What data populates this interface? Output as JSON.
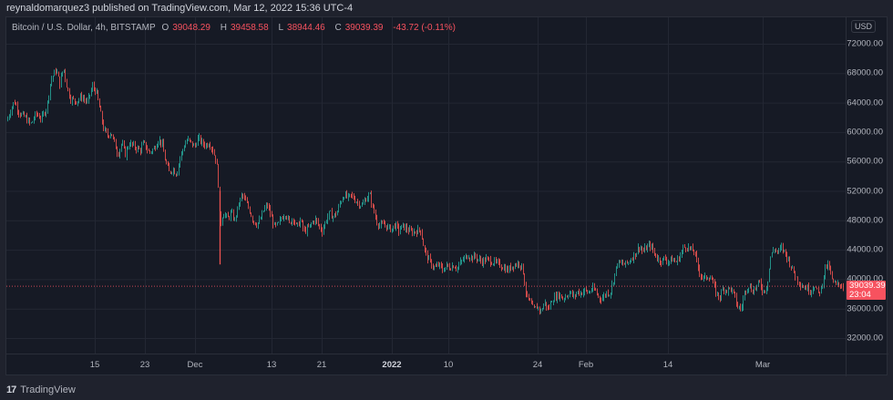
{
  "header": {
    "attribution": "reynaldomarquez3 published on TradingView.com, Mar 12, 2022 15:36 UTC-4"
  },
  "legend": {
    "symbol": "Bitcoin / U.S. Dollar, 4h, BITSTAMP",
    "o_label": "O",
    "o_value": "39048.29",
    "h_label": "H",
    "h_value": "39458.58",
    "l_label": "L",
    "l_value": "38944.46",
    "c_label": "C",
    "c_value": "39039.39",
    "change": "-43.72 (-0.11%)"
  },
  "price_axis": {
    "currency": "USD",
    "last_price": "39039.39",
    "countdown": "23:04"
  },
  "footer": {
    "brand": "TradingView",
    "logo": "17"
  },
  "colors": {
    "up": "#26a69a",
    "down": "#ef5350",
    "background": "#161a25",
    "grid": "#232733",
    "last_price": "#f7525f"
  },
  "chart_data": {
    "type": "candlestick",
    "title": "Bitcoin / U.S. Dollar, 4h, BITSTAMP",
    "xlabel": "",
    "ylabel": "USD",
    "ylim": [
      28000,
      74500
    ],
    "grid": true,
    "legend_position": "top-left",
    "y_ticks": [
      72000,
      68000,
      64000,
      60000,
      56000,
      52000,
      48000,
      44000,
      40000,
      36000,
      32000
    ],
    "x_ticks": [
      {
        "label": "15",
        "x": 97
      },
      {
        "label": "23",
        "x": 152
      },
      {
        "label": "Dec",
        "x": 207
      },
      {
        "label": "13",
        "x": 291
      },
      {
        "label": "21",
        "x": 346
      },
      {
        "label": "2022",
        "x": 423,
        "bold": true
      },
      {
        "label": "10",
        "x": 485
      },
      {
        "label": "24",
        "x": 583
      },
      {
        "label": "Feb",
        "x": 636
      },
      {
        "label": "14",
        "x": 726
      },
      {
        "label": "Mar",
        "x": 830
      }
    ],
    "last_price": 39039.39,
    "close_path": [
      [
        0,
        61500
      ],
      [
        4,
        63000
      ],
      [
        8,
        64200
      ],
      [
        14,
        62500
      ],
      [
        20,
        62000
      ],
      [
        26,
        61000
      ],
      [
        32,
        62500
      ],
      [
        38,
        61800
      ],
      [
        44,
        63500
      ],
      [
        48,
        67000
      ],
      [
        54,
        68500
      ],
      [
        58,
        66500
      ],
      [
        62,
        68800
      ],
      [
        66,
        66000
      ],
      [
        70,
        64500
      ],
      [
        76,
        64200
      ],
      [
        82,
        64800
      ],
      [
        88,
        64000
      ],
      [
        94,
        66200
      ],
      [
        98,
        65500
      ],
      [
        102,
        63000
      ],
      [
        106,
        60500
      ],
      [
        110,
        59500
      ],
      [
        114,
        60000
      ],
      [
        118,
        58500
      ],
      [
        122,
        57000
      ],
      [
        126,
        58500
      ],
      [
        130,
        57000
      ],
      [
        134,
        58500
      ],
      [
        140,
        58000
      ],
      [
        146,
        57500
      ],
      [
        150,
        58500
      ],
      [
        156,
        57200
      ],
      [
        162,
        57800
      ],
      [
        166,
        59000
      ],
      [
        170,
        58500
      ],
      [
        174,
        56000
      ],
      [
        178,
        54500
      ],
      [
        182,
        55000
      ],
      [
        186,
        54300
      ],
      [
        190,
        56500
      ],
      [
        194,
        58000
      ],
      [
        198,
        59000
      ],
      [
        202,
        58500
      ],
      [
        206,
        58000
      ],
      [
        210,
        59200
      ],
      [
        214,
        58500
      ],
      [
        218,
        58200
      ],
      [
        222,
        58600
      ],
      [
        226,
        57500
      ],
      [
        230,
        56000
      ],
      [
        232,
        53000
      ],
      [
        234,
        47000
      ],
      [
        236,
        48500
      ],
      [
        238,
        49000
      ],
      [
        242,
        48200
      ],
      [
        246,
        49000
      ],
      [
        250,
        48000
      ],
      [
        254,
        50000
      ],
      [
        258,
        51500
      ],
      [
        262,
        50500
      ],
      [
        266,
        49500
      ],
      [
        270,
        48000
      ],
      [
        274,
        47500
      ],
      [
        278,
        48000
      ],
      [
        282,
        49500
      ],
      [
        286,
        50000
      ],
      [
        290,
        48500
      ],
      [
        294,
        47000
      ],
      [
        298,
        47500
      ],
      [
        302,
        48500
      ],
      [
        306,
        49000
      ],
      [
        310,
        47500
      ],
      [
        314,
        48500
      ],
      [
        318,
        47000
      ],
      [
        322,
        48000
      ],
      [
        326,
        46500
      ],
      [
        330,
        46800
      ],
      [
        334,
        47500
      ],
      [
        338,
        48200
      ],
      [
        342,
        47300
      ],
      [
        346,
        46600
      ],
      [
        350,
        48000
      ],
      [
        354,
        49000
      ],
      [
        358,
        48500
      ],
      [
        362,
        49000
      ],
      [
        366,
        50500
      ],
      [
        370,
        51500
      ],
      [
        374,
        51000
      ],
      [
        378,
        51400
      ],
      [
        382,
        50800
      ],
      [
        386,
        50300
      ],
      [
        390,
        50000
      ],
      [
        394,
        51000
      ],
      [
        398,
        51500
      ],
      [
        402,
        49500
      ],
      [
        406,
        47800
      ],
      [
        410,
        47200
      ],
      [
        414,
        47500
      ],
      [
        418,
        47000
      ],
      [
        422,
        46800
      ],
      [
        426,
        47400
      ],
      [
        430,
        46600
      ],
      [
        434,
        47200
      ],
      [
        438,
        46900
      ],
      [
        442,
        46500
      ],
      [
        446,
        46400
      ],
      [
        450,
        46600
      ],
      [
        454,
        46700
      ],
      [
        458,
        44000
      ],
      [
        462,
        42800
      ],
      [
        466,
        42000
      ],
      [
        470,
        41500
      ],
      [
        474,
        42000
      ],
      [
        478,
        41200
      ],
      [
        482,
        41800
      ],
      [
        486,
        41600
      ],
      [
        490,
        41900
      ],
      [
        494,
        41500
      ],
      [
        498,
        42300
      ],
      [
        502,
        42800
      ],
      [
        506,
        43300
      ],
      [
        510,
        42900
      ],
      [
        514,
        43100
      ],
      [
        518,
        42600
      ],
      [
        522,
        42400
      ],
      [
        526,
        42700
      ],
      [
        530,
        42500
      ],
      [
        534,
        42300
      ],
      [
        538,
        42100
      ],
      [
        542,
        41900
      ],
      [
        546,
        41500
      ],
      [
        550,
        41200
      ],
      [
        554,
        41800
      ],
      [
        558,
        42000
      ],
      [
        562,
        42200
      ],
      [
        566,
        41500
      ],
      [
        568,
        39500
      ],
      [
        570,
        37800
      ],
      [
        574,
        36800
      ],
      [
        578,
        35800
      ],
      [
        582,
        36300
      ],
      [
        586,
        35600
      ],
      [
        590,
        36900
      ],
      [
        594,
        35800
      ],
      [
        598,
        37200
      ],
      [
        602,
        37600
      ],
      [
        606,
        37900
      ],
      [
        610,
        37400
      ],
      [
        614,
        37800
      ],
      [
        618,
        38200
      ],
      [
        622,
        37600
      ],
      [
        626,
        38300
      ],
      [
        630,
        38100
      ],
      [
        634,
        38500
      ],
      [
        638,
        38100
      ],
      [
        642,
        38700
      ],
      [
        646,
        38400
      ],
      [
        650,
        37400
      ],
      [
        654,
        37500
      ],
      [
        658,
        38200
      ],
      [
        662,
        38100
      ],
      [
        666,
        40200
      ],
      [
        670,
        42200
      ],
      [
        674,
        42100
      ],
      [
        678,
        42000
      ],
      [
        682,
        42300
      ],
      [
        686,
        43000
      ],
      [
        690,
        43500
      ],
      [
        694,
        44500
      ],
      [
        698,
        43700
      ],
      [
        702,
        44300
      ],
      [
        706,
        44600
      ],
      [
        710,
        43600
      ],
      [
        714,
        42800
      ],
      [
        718,
        42500
      ],
      [
        722,
        42800
      ],
      [
        726,
        42400
      ],
      [
        730,
        42700
      ],
      [
        734,
        42300
      ],
      [
        738,
        43000
      ],
      [
        742,
        44200
      ],
      [
        746,
        44500
      ],
      [
        750,
        44000
      ],
      [
        754,
        43800
      ],
      [
        758,
        41800
      ],
      [
        762,
        40300
      ],
      [
        766,
        40100
      ],
      [
        770,
        40500
      ],
      [
        774,
        39800
      ],
      [
        778,
        38200
      ],
      [
        782,
        37500
      ],
      [
        786,
        38800
      ],
      [
        790,
        38500
      ],
      [
        794,
        38800
      ],
      [
        798,
        37800
      ],
      [
        802,
        36200
      ],
      [
        806,
        36000
      ],
      [
        810,
        38500
      ],
      [
        814,
        39200
      ],
      [
        818,
        38400
      ],
      [
        822,
        38900
      ],
      [
        826,
        39500
      ],
      [
        830,
        38300
      ],
      [
        834,
        39000
      ],
      [
        838,
        43000
      ],
      [
        842,
        44200
      ],
      [
        846,
        43600
      ],
      [
        850,
        44300
      ],
      [
        854,
        43600
      ],
      [
        858,
        42500
      ],
      [
        862,
        41300
      ],
      [
        866,
        40300
      ],
      [
        870,
        39500
      ],
      [
        874,
        39000
      ],
      [
        878,
        38800
      ],
      [
        882,
        38400
      ],
      [
        886,
        39200
      ],
      [
        890,
        38000
      ],
      [
        894,
        38800
      ],
      [
        898,
        41700
      ],
      [
        902,
        41800
      ],
      [
        906,
        39600
      ],
      [
        910,
        39200
      ],
      [
        914,
        39300
      ],
      [
        918,
        39039
      ]
    ]
  }
}
